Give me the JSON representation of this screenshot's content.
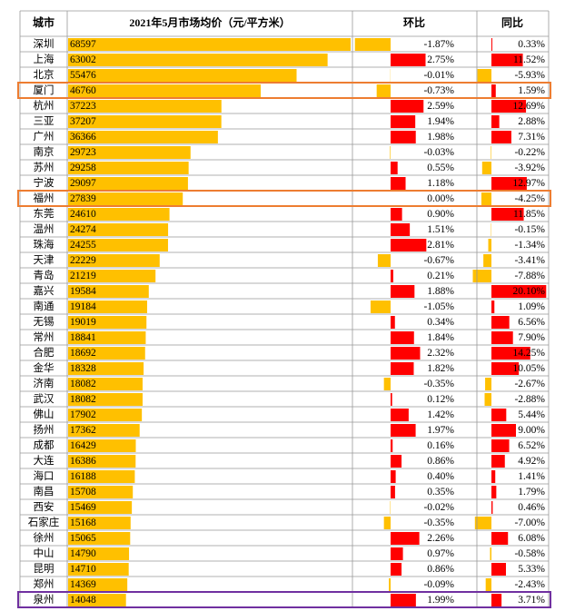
{
  "header": {
    "city": "城市",
    "price": "2021年5月市场均价（元/平方米）",
    "mom": "环比",
    "yoy": "同比"
  },
  "rows": [
    {
      "city": "深圳",
      "price": 68597,
      "mom": -1.87,
      "mom_label": "-1.87%",
      "yoy": 0.33,
      "yoy_label": "0.33%"
    },
    {
      "city": "上海",
      "price": 63002,
      "mom": 2.75,
      "mom_label": "2.75%",
      "yoy": 11.52,
      "yoy_label": "11.52%"
    },
    {
      "city": "北京",
      "price": 55476,
      "mom": -0.01,
      "mom_label": "-0.01%",
      "yoy": -5.93,
      "yoy_label": "-5.93%"
    },
    {
      "city": "厦门",
      "price": 46760,
      "mom": -0.73,
      "mom_label": "-0.73%",
      "yoy": 1.59,
      "yoy_label": "1.59%"
    },
    {
      "city": "杭州",
      "price": 37223,
      "mom": 2.59,
      "mom_label": "2.59%",
      "yoy": 12.69,
      "yoy_label": "12.69%"
    },
    {
      "city": "三亚",
      "price": 37207,
      "mom": 1.94,
      "mom_label": "1.94%",
      "yoy": 2.88,
      "yoy_label": "2.88%"
    },
    {
      "city": "广州",
      "price": 36366,
      "mom": 1.98,
      "mom_label": "1.98%",
      "yoy": 7.31,
      "yoy_label": "7.31%"
    },
    {
      "city": "南京",
      "price": 29723,
      "mom": -0.03,
      "mom_label": "-0.03%",
      "yoy": -0.22,
      "yoy_label": "-0.22%"
    },
    {
      "city": "苏州",
      "price": 29258,
      "mom": 0.55,
      "mom_label": "0.55%",
      "yoy": -3.92,
      "yoy_label": "-3.92%"
    },
    {
      "city": "宁波",
      "price": 29097,
      "mom": 1.18,
      "mom_label": "1.18%",
      "yoy": 12.97,
      "yoy_label": "12.97%"
    },
    {
      "city": "福州",
      "price": 27839,
      "mom": 0,
      "mom_label": "0.00%",
      "yoy": -4.25,
      "yoy_label": "-4.25%"
    },
    {
      "city": "东莞",
      "price": 24610,
      "mom": 0.9,
      "mom_label": "0.90%",
      "yoy": 11.85,
      "yoy_label": "11.85%"
    },
    {
      "city": "温州",
      "price": 24274,
      "mom": 1.51,
      "mom_label": "1.51%",
      "yoy": -0.15,
      "yoy_label": "-0.15%"
    },
    {
      "city": "珠海",
      "price": 24255,
      "mom": 2.81,
      "mom_label": "2.81%",
      "yoy": -1.34,
      "yoy_label": "-1.34%"
    },
    {
      "city": "天津",
      "price": 22229,
      "mom": -0.67,
      "mom_label": "-0.67%",
      "yoy": -3.41,
      "yoy_label": "-3.41%"
    },
    {
      "city": "青岛",
      "price": 21219,
      "mom": 0.21,
      "mom_label": "0.21%",
      "yoy": -7.88,
      "yoy_label": "-7.88%"
    },
    {
      "city": "嘉兴",
      "price": 19584,
      "mom": 1.88,
      "mom_label": "1.88%",
      "yoy": 20.1,
      "yoy_label": "20.10%"
    },
    {
      "city": "南通",
      "price": 19184,
      "mom": -1.05,
      "mom_label": "-1.05%",
      "yoy": 1.09,
      "yoy_label": "1.09%"
    },
    {
      "city": "无锡",
      "price": 19019,
      "mom": 0.34,
      "mom_label": "0.34%",
      "yoy": 6.56,
      "yoy_label": "6.56%"
    },
    {
      "city": "常州",
      "price": 18841,
      "mom": 1.84,
      "mom_label": "1.84%",
      "yoy": 7.9,
      "yoy_label": "7.90%"
    },
    {
      "city": "合肥",
      "price": 18692,
      "mom": 2.32,
      "mom_label": "2.32%",
      "yoy": 14.25,
      "yoy_label": "14.25%"
    },
    {
      "city": "金华",
      "price": 18328,
      "mom": 1.82,
      "mom_label": "1.82%",
      "yoy": 10.05,
      "yoy_label": "10.05%"
    },
    {
      "city": "济南",
      "price": 18082,
      "mom": -0.35,
      "mom_label": "-0.35%",
      "yoy": -2.67,
      "yoy_label": "-2.67%"
    },
    {
      "city": "武汉",
      "price": 18082,
      "mom": 0.12,
      "mom_label": "0.12%",
      "yoy": -2.88,
      "yoy_label": "-2.88%"
    },
    {
      "city": "佛山",
      "price": 17902,
      "mom": 1.42,
      "mom_label": "1.42%",
      "yoy": 5.44,
      "yoy_label": "5.44%"
    },
    {
      "city": "扬州",
      "price": 17362,
      "mom": 1.97,
      "mom_label": "1.97%",
      "yoy": 9,
      "yoy_label": "9.00%"
    },
    {
      "city": "成都",
      "price": 16429,
      "mom": 0.16,
      "mom_label": "0.16%",
      "yoy": 6.52,
      "yoy_label": "6.52%"
    },
    {
      "city": "大连",
      "price": 16386,
      "mom": 0.86,
      "mom_label": "0.86%",
      "yoy": 4.92,
      "yoy_label": "4.92%"
    },
    {
      "city": "海口",
      "price": 16188,
      "mom": 0.4,
      "mom_label": "0.40%",
      "yoy": 1.41,
      "yoy_label": "1.41%"
    },
    {
      "city": "南昌",
      "price": 15708,
      "mom": 0.35,
      "mom_label": "0.35%",
      "yoy": 1.79,
      "yoy_label": "1.79%"
    },
    {
      "city": "西安",
      "price": 15469,
      "mom": -0.02,
      "mom_label": "-0.02%",
      "yoy": 0.46,
      "yoy_label": "0.46%"
    },
    {
      "city": "石家庄",
      "price": 15168,
      "mom": -0.35,
      "mom_label": "-0.35%",
      "yoy": -7,
      "yoy_label": "-7.00%"
    },
    {
      "city": "徐州",
      "price": 15065,
      "mom": 2.26,
      "mom_label": "2.26%",
      "yoy": 6.08,
      "yoy_label": "6.08%"
    },
    {
      "city": "中山",
      "price": 14790,
      "mom": 0.97,
      "mom_label": "0.97%",
      "yoy": -0.58,
      "yoy_label": "-0.58%"
    },
    {
      "city": "昆明",
      "price": 14710,
      "mom": 0.86,
      "mom_label": "0.86%",
      "yoy": 5.33,
      "yoy_label": "5.33%"
    },
    {
      "city": "郑州",
      "price": 14369,
      "mom": -0.09,
      "mom_label": "-0.09%",
      "yoy": -2.43,
      "yoy_label": "-2.43%"
    },
    {
      "city": "泉州",
      "price": 14048,
      "mom": 1.99,
      "mom_label": "1.99%",
      "yoy": 3.71,
      "yoy_label": "3.71%"
    }
  ]
}
